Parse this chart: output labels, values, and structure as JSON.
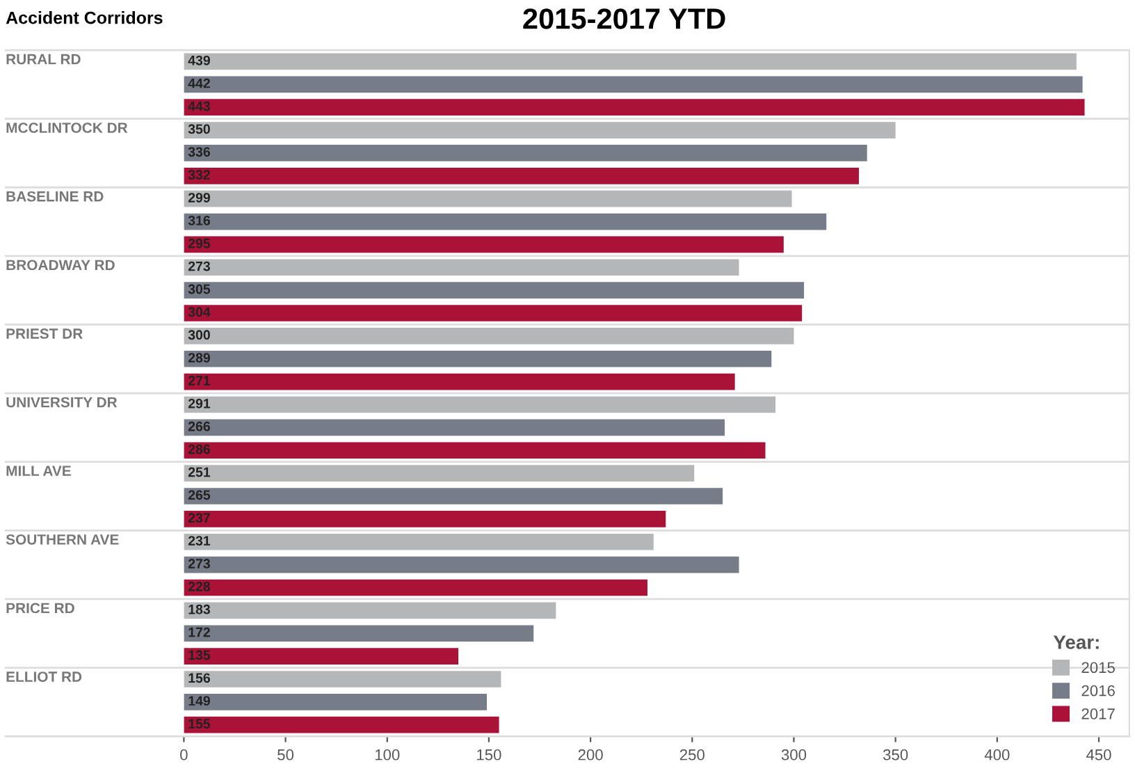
{
  "chart_data": {
    "type": "bar",
    "orientation": "horizontal",
    "title": "2015-2017 YTD",
    "ylabel": "Accident Corridors",
    "legend_title": "Year:",
    "categories": [
      "RURAL RD",
      "MCCLINTOCK DR",
      "BASELINE RD",
      "BROADWAY RD",
      "PRIEST DR",
      "UNIVERSITY DR",
      "MILL AVE",
      "SOUTHERN AVE",
      "PRICE RD",
      "ELLIOT RD"
    ],
    "series": [
      {
        "name": "2015",
        "color": "#b4b6b7",
        "values": [
          439,
          350,
          299,
          273,
          300,
          291,
          251,
          231,
          183,
          156
        ]
      },
      {
        "name": "2016",
        "color": "#767c88",
        "values": [
          442,
          336,
          316,
          305,
          289,
          266,
          265,
          273,
          172,
          149
        ]
      },
      {
        "name": "2017",
        "color": "#ab1238",
        "values": [
          443,
          332,
          295,
          304,
          271,
          286,
          237,
          228,
          135,
          155
        ]
      }
    ],
    "xlim": [
      0,
      465
    ],
    "xticks": [
      0,
      50,
      100,
      150,
      200,
      250,
      300,
      350,
      400,
      450
    ],
    "data_labels": true,
    "legend": "bottom right",
    "grid": false
  }
}
